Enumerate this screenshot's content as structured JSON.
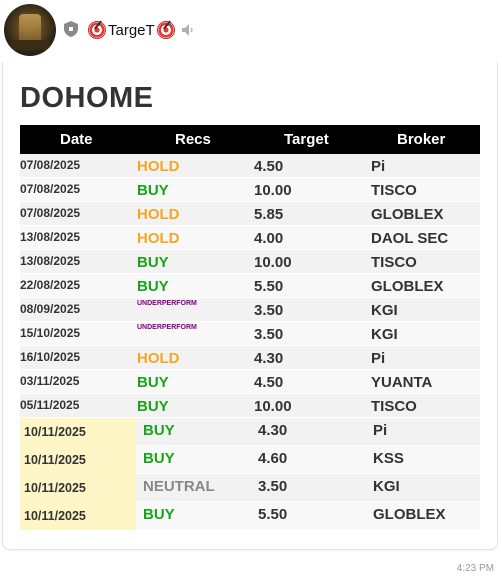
{
  "header": {
    "sender_name": "TargeT",
    "icons": {
      "shield": "shield-icon",
      "mute": "speaker-muted-icon",
      "target": "target-emoji-icon"
    }
  },
  "message": {
    "title": "DOHOME",
    "columns": [
      "Date",
      "Recs",
      "Target",
      "Broker"
    ],
    "rows": [
      {
        "date": "07/08/2025",
        "rec": "HOLD",
        "target": "4.50",
        "broker": "Pi"
      },
      {
        "date": "07/08/2025",
        "rec": "BUY",
        "target": "10.00",
        "broker": "TISCO"
      },
      {
        "date": "07/08/2025",
        "rec": "HOLD",
        "target": "5.85",
        "broker": "GLOBLEX"
      },
      {
        "date": "13/08/2025",
        "rec": "HOLD",
        "target": "4.00",
        "broker": "DAOL SEC"
      },
      {
        "date": "13/08/2025",
        "rec": "BUY",
        "target": "10.00",
        "broker": "TISCO"
      },
      {
        "date": "22/08/2025",
        "rec": "BUY",
        "target": "5.50",
        "broker": "GLOBLEX"
      },
      {
        "date": "08/09/2025",
        "rec": "UNDERPERFORM",
        "target": "3.50",
        "broker": "KGI"
      },
      {
        "date": "15/10/2025",
        "rec": "UNDERPERFORM",
        "target": "3.50",
        "broker": "KGI"
      },
      {
        "date": "16/10/2025",
        "rec": "HOLD",
        "target": "4.30",
        "broker": "Pi"
      },
      {
        "date": "03/11/2025",
        "rec": "BUY",
        "target": "4.50",
        "broker": "YUANTA"
      },
      {
        "date": "05/11/2025",
        "rec": "BUY",
        "target": "10.00",
        "broker": "TISCO"
      }
    ],
    "highlight_rows": [
      {
        "date": "10/11/2025",
        "rec": "BUY",
        "target": "4.30",
        "broker": "Pi"
      },
      {
        "date": "10/11/2025",
        "rec": "BUY",
        "target": "4.60",
        "broker": "KSS"
      },
      {
        "date": "10/11/2025",
        "rec": "NEUTRAL",
        "target": "3.50",
        "broker": "KGI"
      },
      {
        "date": "10/11/2025",
        "rec": "BUY",
        "target": "5.50",
        "broker": "GLOBLEX"
      }
    ],
    "time": "4:23 PM"
  },
  "colors": {
    "hold": "#f5a623",
    "buy": "#1aa31a",
    "underperform": "#800080",
    "neutral": "#888888",
    "highlight_date": "#fff6c8"
  }
}
